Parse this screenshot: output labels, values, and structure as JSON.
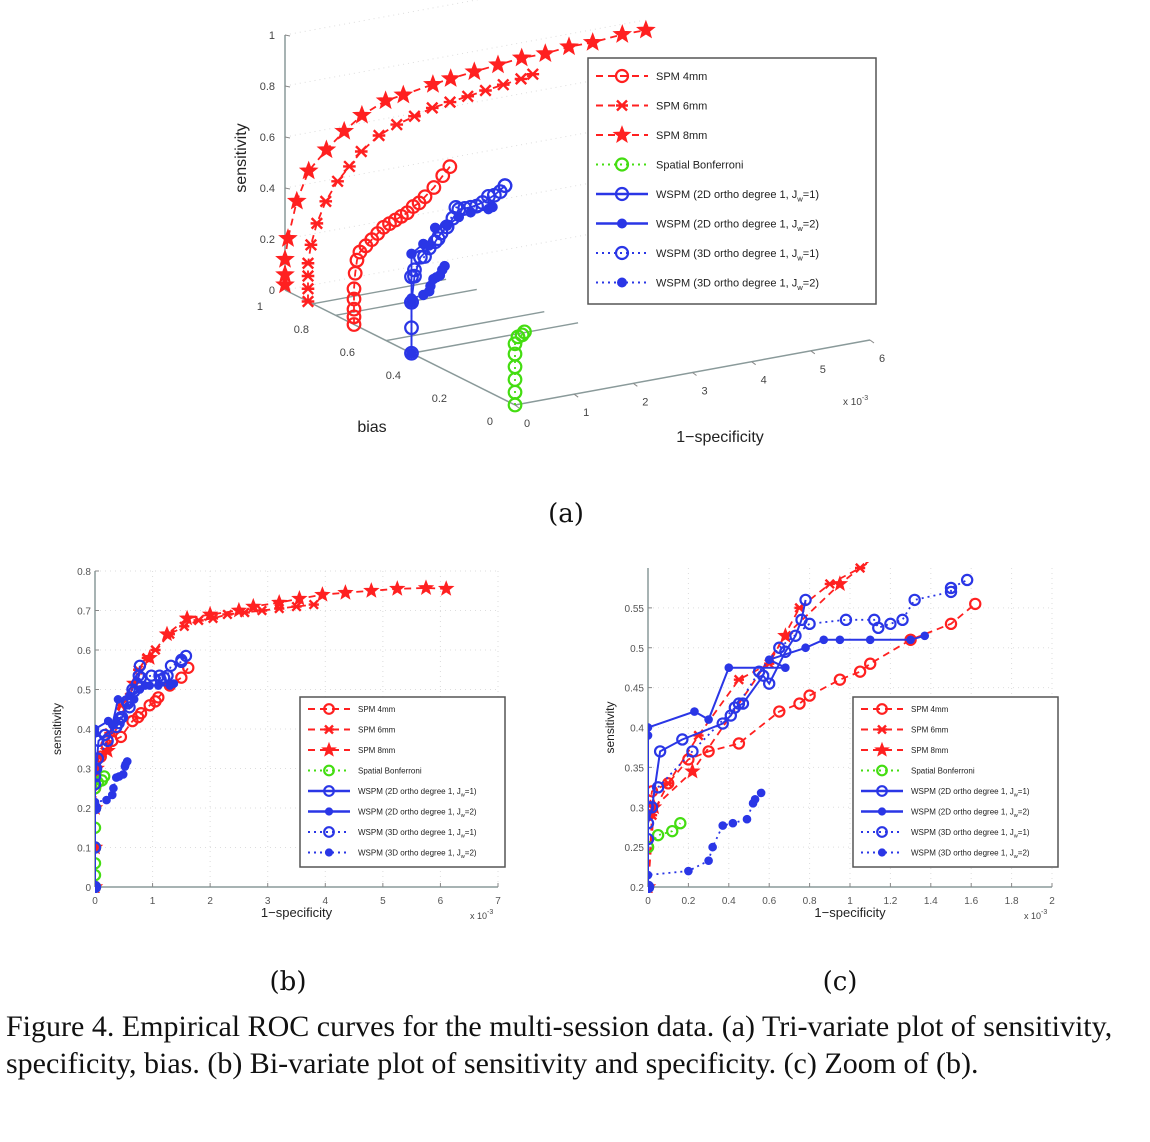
{
  "legend": [
    {
      "label": "SPM 4mm",
      "color": "#ff2020",
      "line": "dashed",
      "marker": "circle"
    },
    {
      "label": "SPM 6mm",
      "color": "#ff2020",
      "line": "dashed",
      "marker": "x"
    },
    {
      "label": "SPM 8mm",
      "color": "#ff2020",
      "line": "dashed",
      "marker": "star"
    },
    {
      "label": "Spatial Bonferroni",
      "color": "#44dd11",
      "line": "dotted",
      "marker": "circle"
    },
    {
      "label": "WSPM (2D ortho degree 1, J",
      "sub": "w",
      "tail": "=1)",
      "color": "#2a36e6",
      "line": "solid",
      "marker": "circle"
    },
    {
      "label": "WSPM (2D ortho degree 1, J",
      "sub": "w",
      "tail": "=2)",
      "color": "#2a36e6",
      "line": "solid",
      "marker": "dot"
    },
    {
      "label": "WSPM (3D ortho degree 1, J",
      "sub": "w",
      "tail": "=1)",
      "color": "#2a36e6",
      "line": "dotted",
      "marker": "circle"
    },
    {
      "label": "WSPM (3D ortho degree 1, J",
      "sub": "w",
      "tail": "=2)",
      "color": "#2a36e6",
      "line": "dotted",
      "marker": "dot"
    }
  ],
  "panel_labels": {
    "a": "(a)",
    "b": "(b)",
    "c": "(c)"
  },
  "caption": "Figure 4. Empirical ROC curves for the multi-session data. (a) Tri-variate plot of sensitivity, specificity, bias. (b) Bi-variate plot of sensitivity and specificity. (c) Zoom of (b).",
  "chart_data": [
    {
      "type": "scatter",
      "panel": "a",
      "projection": "3d",
      "xlabel": "1−specificity",
      "ylabel": "bias",
      "zlabel": "sensitivity",
      "x_multiplier": "x 10",
      "x_exponent": "-3",
      "x_ticks": [
        "0",
        "1",
        "2",
        "3",
        "4",
        "5",
        "6"
      ],
      "y_ticks": [
        "0",
        "0.2",
        "0.4",
        "0.6",
        "0.8",
        "1"
      ],
      "z_ticks": [
        "0",
        "0.2",
        "0.4",
        "0.6",
        "0.8",
        "1"
      ],
      "xlim": [
        0,
        6
      ],
      "ylim": [
        0,
        1
      ],
      "zlim": [
        0,
        1
      ],
      "series": [
        {
          "name": "SPM 4mm",
          "bias": 0.7,
          "x": [
            0,
            0,
            0,
            0,
            0,
            0.02,
            0.05,
            0.1,
            0.2,
            0.3,
            0.4,
            0.5,
            0.6,
            0.7,
            0.8,
            0.9,
            1.0,
            1.1,
            1.2,
            1.35,
            1.5,
            1.62
          ],
          "sensitivity": [
            0,
            0.03,
            0.06,
            0.1,
            0.14,
            0.2,
            0.25,
            0.28,
            0.3,
            0.32,
            0.34,
            0.36,
            0.37,
            0.38,
            0.39,
            0.4,
            0.42,
            0.43,
            0.45,
            0.48,
            0.52,
            0.55
          ]
        },
        {
          "name": "SPM 6mm",
          "bias": 0.9,
          "x": [
            0,
            0,
            0,
            0,
            0.05,
            0.15,
            0.3,
            0.5,
            0.7,
            0.9,
            1.2,
            1.5,
            1.8,
            2.1,
            2.4,
            2.7,
            3.0,
            3.3,
            3.6,
            3.8
          ],
          "sensitivity": [
            0,
            0.05,
            0.1,
            0.15,
            0.22,
            0.3,
            0.38,
            0.45,
            0.5,
            0.55,
            0.6,
            0.63,
            0.65,
            0.67,
            0.68,
            0.69,
            0.7,
            0.71,
            0.72,
            0.73
          ]
        },
        {
          "name": "SPM 8mm",
          "bias": 1.0,
          "x": [
            0,
            0,
            0,
            0.05,
            0.2,
            0.4,
            0.7,
            1.0,
            1.3,
            1.7,
            2.0,
            2.5,
            2.8,
            3.2,
            3.6,
            4.0,
            4.4,
            4.8,
            5.2,
            5.7,
            6.1
          ],
          "sensitivity": [
            0.02,
            0.06,
            0.12,
            0.2,
            0.34,
            0.45,
            0.52,
            0.58,
            0.63,
            0.67,
            0.68,
            0.7,
            0.71,
            0.72,
            0.73,
            0.74,
            0.74,
            0.75,
            0.75,
            0.76,
            0.76
          ]
        },
        {
          "name": "Spatial Bonferroni",
          "bias": 0.0,
          "x": [
            0,
            0,
            0,
            0,
            0,
            0,
            0.05,
            0.12,
            0.16
          ],
          "sensitivity": [
            0,
            0.05,
            0.1,
            0.15,
            0.2,
            0.24,
            0.265,
            0.27,
            0.28
          ]
        },
        {
          "name": "WSPM (2D ortho degree 1, Jw=1)",
          "bias": 0.45,
          "x": [
            0,
            0,
            0,
            0.05,
            0.15,
            0.3,
            0.4,
            0.5,
            0.6,
            0.7,
            0.8,
            1.0,
            1.2,
            1.4,
            1.58
          ],
          "sensitivity": [
            0,
            0.1,
            0.2,
            0.3,
            0.37,
            0.4,
            0.42,
            0.45,
            0.47,
            0.5,
            0.53,
            0.53,
            0.54,
            0.56,
            0.59
          ]
        },
        {
          "name": "WSPM (2D ortho degree 1, Jw=2)",
          "bias": 0.45,
          "x": [
            0,
            0,
            0,
            0.2,
            0.3,
            0.4,
            0.6,
            0.8,
            1.0,
            1.3,
            1.37
          ],
          "sensitivity": [
            0,
            0.2,
            0.39,
            0.42,
            0.41,
            0.475,
            0.475,
            0.5,
            0.51,
            0.51,
            0.515
          ]
        },
        {
          "name": "WSPM (3D ortho degree 1, Jw=1)",
          "bias": 0.45,
          "x": [
            0,
            0,
            0.05,
            0.22,
            0.45,
            0.6,
            0.75,
            0.9,
            1.1,
            1.3,
            1.5,
            1.58
          ],
          "sensitivity": [
            0.2,
            0.3,
            0.325,
            0.37,
            0.43,
            0.47,
            0.54,
            0.53,
            0.53,
            0.56,
            0.57,
            0.59
          ]
        },
        {
          "name": "WSPM (3D ortho degree 1, Jw=2)",
          "bias": 0.45,
          "x": [
            0,
            0,
            0.2,
            0.3,
            0.32,
            0.37,
            0.42,
            0.48,
            0.52,
            0.56
          ],
          "sensitivity": [
            0,
            0.215,
            0.22,
            0.23,
            0.25,
            0.275,
            0.28,
            0.285,
            0.305,
            0.318
          ]
        }
      ]
    },
    {
      "type": "line",
      "panel": "b",
      "xlabel": "1−specificity",
      "ylabel": "sensitivity",
      "x_multiplier": "x 10",
      "x_exponent": "-3",
      "xlim": [
        0,
        7
      ],
      "ylim": [
        0,
        0.8
      ],
      "x_ticks": [
        "0",
        "1",
        "2",
        "3",
        "4",
        "5",
        "6",
        "7"
      ],
      "y_ticks": [
        "0",
        "0.1",
        "0.2",
        "0.3",
        "0.4",
        "0.5",
        "0.6",
        "0.7",
        "0.8"
      ],
      "grid": true,
      "legend_position": "bottom-right",
      "series": [
        {
          "name": "SPM 4mm",
          "x": [
            0,
            0,
            0,
            0,
            0,
            0.02,
            0.1,
            0.2,
            0.3,
            0.45,
            0.65,
            0.75,
            0.8,
            0.95,
            1.05,
            1.1,
            1.3,
            1.5,
            1.62
          ],
          "y": [
            0,
            0.1,
            0.2,
            0.25,
            0.29,
            0.32,
            0.33,
            0.36,
            0.37,
            0.38,
            0.42,
            0.43,
            0.44,
            0.46,
            0.47,
            0.48,
            0.51,
            0.53,
            0.555
          ]
        },
        {
          "name": "SPM 6mm",
          "x": [
            0,
            0,
            0,
            0.02,
            0.1,
            0.25,
            0.45,
            0.6,
            0.75,
            0.9,
            1.05,
            1.3,
            1.55,
            1.8,
            2.05,
            2.3,
            2.6,
            2.9,
            3.2,
            3.5,
            3.8
          ],
          "y": [
            0,
            0.1,
            0.2,
            0.29,
            0.33,
            0.39,
            0.46,
            0.48,
            0.55,
            0.58,
            0.6,
            0.64,
            0.66,
            0.675,
            0.68,
            0.69,
            0.695,
            0.7,
            0.705,
            0.71,
            0.715
          ]
        },
        {
          "name": "SPM 8mm",
          "x": [
            0,
            0,
            0,
            0.03,
            0.22,
            0.68,
            0.95,
            1.25,
            1.6,
            2.0,
            2.5,
            2.75,
            3.2,
            3.55,
            3.95,
            4.35,
            4.8,
            5.25,
            5.75,
            6.1
          ],
          "y": [
            0,
            0.1,
            0.2,
            0.3,
            0.345,
            0.515,
            0.58,
            0.64,
            0.68,
            0.69,
            0.7,
            0.71,
            0.72,
            0.73,
            0.74,
            0.745,
            0.75,
            0.755,
            0.757,
            0.755
          ]
        },
        {
          "name": "Spatial Bonferroni",
          "x": [
            0,
            0,
            0,
            0,
            0,
            0,
            0,
            0.05,
            0.12,
            0.16
          ],
          "y": [
            0,
            0.03,
            0.06,
            0.1,
            0.15,
            0.2,
            0.25,
            0.265,
            0.27,
            0.28
          ]
        },
        {
          "name": "WSPM (2D ortho degree 1, Jw=1)",
          "x": [
            0,
            0,
            0,
            0,
            0.02,
            0.06,
            0.17,
            0.37,
            0.41,
            0.43,
            0.47,
            0.57,
            0.6,
            0.68,
            0.73,
            0.76,
            0.78
          ],
          "y": [
            0,
            0.1,
            0.2,
            0.28,
            0.3,
            0.37,
            0.385,
            0.405,
            0.415,
            0.425,
            0.43,
            0.465,
            0.455,
            0.495,
            0.515,
            0.535,
            0.56
          ]
        },
        {
          "name": "WSPM (2D ortho degree 1, Jw=2)",
          "x": [
            0,
            0,
            0,
            0,
            0.23,
            0.3,
            0.4,
            0.68,
            0.6,
            0.78,
            0.87,
            0.95,
            1.1,
            1.3,
            1.37
          ],
          "y": [
            0,
            0.2,
            0.39,
            0.4,
            0.42,
            0.41,
            0.475,
            0.475,
            0.485,
            0.5,
            0.51,
            0.51,
            0.51,
            0.51,
            0.515
          ]
        },
        {
          "name": "WSPM (3D ortho degree 1, Jw=1)",
          "x": [
            0,
            0,
            0,
            0.05,
            0.22,
            0.45,
            0.55,
            0.65,
            0.8,
            0.98,
            1.12,
            1.14,
            1.2,
            1.26,
            1.32,
            1.5,
            1.5,
            1.58
          ],
          "y": [
            0.2,
            0.26,
            0.3,
            0.325,
            0.37,
            0.43,
            0.47,
            0.5,
            0.53,
            0.535,
            0.535,
            0.525,
            0.53,
            0.535,
            0.56,
            0.57,
            0.575,
            0.585
          ]
        },
        {
          "name": "WSPM (3D ortho degree 1, Jw=2)",
          "x": [
            0,
            0,
            0.2,
            0.3,
            0.32,
            0.37,
            0.42,
            0.49,
            0.52,
            0.53,
            0.56
          ],
          "y": [
            0,
            0.215,
            0.22,
            0.233,
            0.25,
            0.277,
            0.28,
            0.285,
            0.305,
            0.31,
            0.318
          ]
        }
      ]
    },
    {
      "type": "line",
      "panel": "c",
      "xlabel": "1−specificity",
      "ylabel": "sensitivity",
      "x_multiplier": "x 10",
      "x_exponent": "-3",
      "xlim": [
        0,
        2
      ],
      "ylim": [
        0.2,
        0.6
      ],
      "x_ticks": [
        "0",
        "0.2",
        "0.4",
        "0.6",
        "0.8",
        "1",
        "1.2",
        "1.4",
        "1.6",
        "1.8",
        "2"
      ],
      "y_ticks": [
        "0.2",
        "0.25",
        "0.3",
        "0.35",
        "0.4",
        "0.45",
        "0.5",
        "0.55"
      ],
      "grid": true,
      "legend_position": "bottom-right",
      "series_ref": "same data as panel b, zoomed"
    }
  ]
}
